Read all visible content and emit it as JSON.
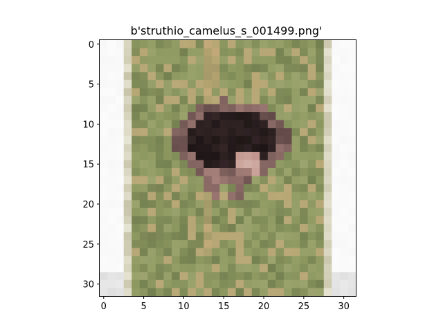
{
  "figure": {
    "title": "b'struthio_camelus_s_001499.png'"
  },
  "image_panel": {
    "x_ticks": [
      {
        "value": 0,
        "label": "0"
      },
      {
        "value": 5,
        "label": "5"
      },
      {
        "value": 10,
        "label": "10"
      },
      {
        "value": 15,
        "label": "15"
      },
      {
        "value": 20,
        "label": "20"
      },
      {
        "value": 25,
        "label": "25"
      },
      {
        "value": 30,
        "label": "30"
      }
    ],
    "y_ticks": [
      {
        "value": 0,
        "label": "0"
      },
      {
        "value": 5,
        "label": "5"
      },
      {
        "value": 10,
        "label": "10"
      },
      {
        "value": 15,
        "label": "15"
      },
      {
        "value": 20,
        "label": "20"
      },
      {
        "value": 25,
        "label": "25"
      },
      {
        "value": 30,
        "label": "30"
      }
    ],
    "grid_size": [
      32,
      32
    ],
    "colors": {
      "grass_light": "#a9ad7a",
      "grass_mid": "#8f9a62",
      "grass_dark": "#6d7a4c",
      "tan": "#c9a97a",
      "dark_bird": "#1e1616",
      "bird_mid": "#3a2a2c",
      "pink": "#c2968e",
      "border_white": "#f8f8f8",
      "border_gray": "#dcdcdc"
    }
  }
}
